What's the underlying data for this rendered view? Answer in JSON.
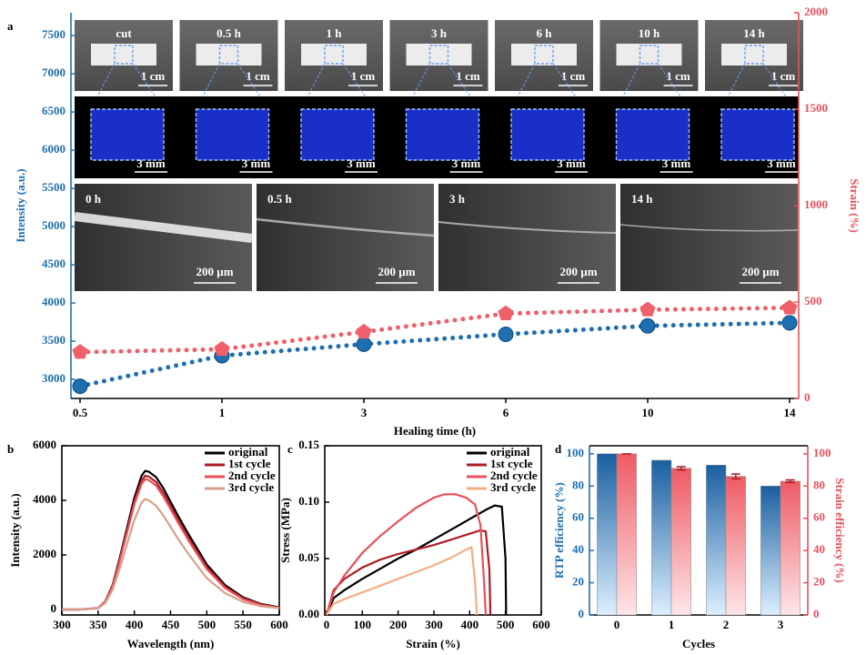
{
  "chart_data": [
    {
      "type": "line",
      "panel_label": "a",
      "x_label": "Healing time (h)",
      "y_label": "Intensity (a.u.)",
      "y2_label": "Strain (%)",
      "y_color": "#1f6fb0",
      "y2_color": "#e8505b",
      "categories": [
        "0.5",
        "1",
        "3",
        "6",
        "10",
        "14"
      ],
      "ylim": [
        2750,
        7800
      ],
      "yticks": [
        3000,
        3500,
        4000,
        4500,
        5000,
        5500,
        6000,
        6500,
        7000,
        7500
      ],
      "y2lim": [
        0,
        2000
      ],
      "y2ticks": [
        0,
        500,
        1000,
        1500,
        2000
      ],
      "series": [
        {
          "color": "#1f6fb0",
          "marker": "circle",
          "values": [
            2910,
            3310,
            3460,
            3590,
            3700,
            3740
          ]
        },
        {
          "color": "#f0606a",
          "marker": "pentagon",
          "axis": "y2",
          "values": [
            240,
            255,
            345,
            440,
            460,
            470
          ]
        }
      ],
      "photos": {
        "labels": [
          "cut",
          "0.5 h",
          "1 h",
          "3 h",
          "6 h",
          "10 h",
          "14 h"
        ],
        "scale": "1 cm"
      },
      "fluorescence": {
        "scale": "3 mm"
      },
      "sem": {
        "labels": [
          "0 h",
          "0.5 h",
          "3 h",
          "14 h"
        ],
        "scale": "200 µm"
      }
    },
    {
      "type": "line",
      "panel_label": "b",
      "x_label": "Wavelength (nm)",
      "y_label": "Intensity (a.u.)",
      "xlim": [
        300,
        600
      ],
      "xticks": [
        300,
        350,
        400,
        450,
        500,
        550,
        600
      ],
      "ylim": [
        -200,
        6000
      ],
      "yticks": [
        0,
        2000,
        4000,
        6000
      ],
      "series": [
        {
          "name": "original",
          "color": "#000000",
          "x": [
            300,
            325,
            350,
            360,
            370,
            380,
            390,
            400,
            410,
            415,
            420,
            430,
            440,
            450,
            460,
            475,
            500,
            525,
            550,
            575,
            600
          ],
          "values": [
            0,
            0,
            50,
            300,
            900,
            1900,
            3000,
            4100,
            4900,
            5080,
            5050,
            4850,
            4450,
            3950,
            3450,
            2750,
            1650,
            900,
            450,
            200,
            80
          ]
        },
        {
          "name": "1st cycle",
          "color": "#b01c24",
          "x": [
            300,
            325,
            350,
            360,
            370,
            380,
            390,
            400,
            410,
            415,
            420,
            430,
            440,
            450,
            460,
            475,
            500,
            525,
            550,
            575,
            600
          ],
          "values": [
            0,
            0,
            50,
            290,
            870,
            1830,
            2900,
            3960,
            4730,
            4900,
            4870,
            4670,
            4280,
            3800,
            3300,
            2620,
            1560,
            840,
            410,
            180,
            70
          ]
        },
        {
          "name": "2nd cycle",
          "color": "#e8505b",
          "x": [
            300,
            325,
            350,
            360,
            370,
            380,
            390,
            400,
            410,
            415,
            420,
            430,
            440,
            450,
            460,
            475,
            500,
            525,
            550,
            575,
            600
          ],
          "values": [
            0,
            0,
            45,
            280,
            850,
            1790,
            2820,
            3860,
            4600,
            4780,
            4740,
            4540,
            4150,
            3680,
            3200,
            2520,
            1480,
            790,
            380,
            160,
            60
          ]
        },
        {
          "name": "3rd cycle",
          "color": "#d9a08a",
          "x": [
            300,
            325,
            350,
            360,
            370,
            380,
            390,
            400,
            410,
            415,
            420,
            430,
            440,
            450,
            460,
            475,
            500,
            525,
            550,
            575,
            600
          ],
          "values": [
            0,
            0,
            40,
            240,
            720,
            1520,
            2400,
            3280,
            3920,
            4050,
            4000,
            3800,
            3450,
            3030,
            2600,
            2020,
            1150,
            600,
            280,
            120,
            50
          ]
        }
      ]
    },
    {
      "type": "line",
      "panel_label": "c",
      "x_label": "Strain (%)",
      "y_label": "Stress (MPa)",
      "xlim": [
        -5,
        600
      ],
      "xticks": [
        0,
        100,
        200,
        300,
        400,
        500,
        600
      ],
      "ylim": [
        0,
        0.15
      ],
      "yticks": [
        {
          "value": 0,
          "label": "0.00"
        },
        {
          "value": 0.05,
          "label": "0.05"
        },
        {
          "value": 0.1,
          "label": "0.10"
        },
        {
          "value": 0.15,
          "label": "0.15"
        }
      ],
      "series": [
        {
          "name": "original",
          "color": "#000000",
          "x": [
            0,
            20,
            50,
            100,
            150,
            200,
            250,
            300,
            350,
            400,
            450,
            470,
            490,
            500,
            502
          ],
          "values": [
            0,
            0.015,
            0.022,
            0.032,
            0.041,
            0.05,
            0.058,
            0.067,
            0.076,
            0.085,
            0.094,
            0.097,
            0.096,
            0.05,
            0
          ]
        },
        {
          "name": "1st cycle",
          "color": "#b01c24",
          "x": [
            0,
            20,
            50,
            100,
            150,
            200,
            250,
            300,
            350,
            400,
            430,
            445,
            455,
            458
          ],
          "values": [
            0,
            0.022,
            0.032,
            0.042,
            0.049,
            0.054,
            0.058,
            0.062,
            0.067,
            0.072,
            0.075,
            0.074,
            0.04,
            0
          ]
        },
        {
          "name": "2nd cycle",
          "color": "#e8505b",
          "x": [
            0,
            20,
            50,
            100,
            150,
            200,
            250,
            300,
            330,
            360,
            390,
            415,
            430,
            440,
            445
          ],
          "values": [
            0,
            0.02,
            0.035,
            0.055,
            0.07,
            0.083,
            0.095,
            0.104,
            0.107,
            0.107,
            0.104,
            0.098,
            0.08,
            0.03,
            0
          ]
        },
        {
          "name": "3rd cycle",
          "color": "#f4ad82",
          "x": [
            0,
            20,
            50,
            100,
            150,
            200,
            250,
            300,
            350,
            390,
            405,
            415,
            420
          ],
          "values": [
            0,
            0.01,
            0.014,
            0.02,
            0.026,
            0.032,
            0.038,
            0.044,
            0.051,
            0.058,
            0.06,
            0.03,
            0
          ]
        }
      ]
    },
    {
      "type": "bar",
      "panel_label": "d",
      "x_label": "Cycles",
      "y_label": "RTP efficiency (%)",
      "y2_label": "Strain efficiency (%)",
      "y_color": "#1f6fb0",
      "y2_color": "#e8505b",
      "categories": [
        "0",
        "1",
        "2",
        "3"
      ],
      "ylim": [
        0,
        105
      ],
      "yticks": [
        0,
        20,
        40,
        60,
        80,
        100
      ],
      "y2lim": [
        0,
        105
      ],
      "y2ticks": [
        0,
        20,
        40,
        60,
        80,
        100
      ],
      "series": [
        {
          "color": "#1f6fb0",
          "values": [
            100,
            96,
            93,
            80
          ]
        },
        {
          "color": "#f0606a",
          "axis": "y2",
          "values": [
            100,
            91,
            86,
            83
          ],
          "errors": [
            0,
            1,
            1.5,
            0.8
          ]
        }
      ]
    }
  ]
}
